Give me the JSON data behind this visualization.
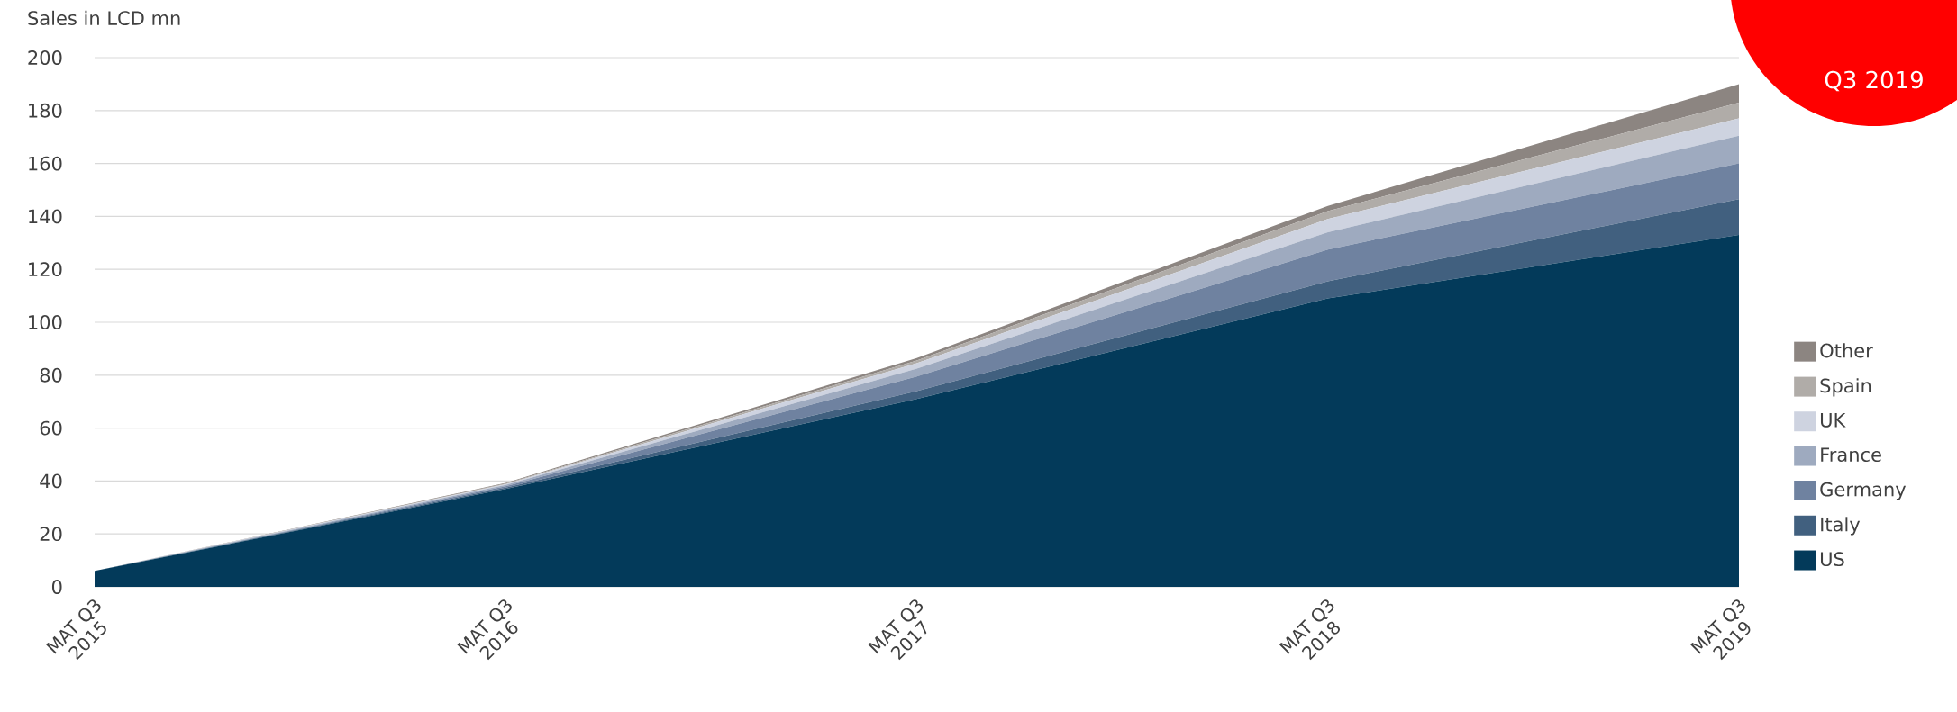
{
  "chart_data": {
    "type": "area",
    "stacked": true,
    "ylabel": "Sales in LCD mn",
    "categories": [
      "MAT Q3 2015",
      "MAT Q3 2016",
      "MAT Q3 2017",
      "MAT Q3 2018",
      "MAT Q3 2019"
    ],
    "series": [
      {
        "name": "US",
        "color": "#033a5a",
        "values": [
          6,
          37,
          71,
          109,
          133
        ]
      },
      {
        "name": "Italy",
        "color": "#41607f",
        "values": [
          0,
          0.5,
          3,
          6.5,
          13.5
        ]
      },
      {
        "name": "Germany",
        "color": "#6f82a0",
        "values": [
          0,
          0.5,
          5.5,
          12,
          13.5
        ]
      },
      {
        "name": "France",
        "color": "#9eaabf",
        "values": [
          0,
          0.5,
          3,
          6.5,
          10.5
        ]
      },
      {
        "name": "UK",
        "color": "#ced3e0",
        "values": [
          0,
          0.3,
          2,
          5,
          6.5
        ]
      },
      {
        "name": "Spain",
        "color": "#b0aca8",
        "values": [
          0,
          0.2,
          1,
          3,
          6
        ]
      },
      {
        "name": "Other",
        "color": "#8c8581",
        "values": [
          0,
          0.3,
          1,
          2,
          7
        ]
      }
    ],
    "ylim": [
      0,
      200
    ],
    "yticks": [
      0,
      20,
      40,
      60,
      80,
      100,
      120,
      140,
      160,
      180,
      200
    ],
    "grid": "y",
    "legend": "right",
    "annotations": [
      "Q3 2019"
    ]
  }
}
